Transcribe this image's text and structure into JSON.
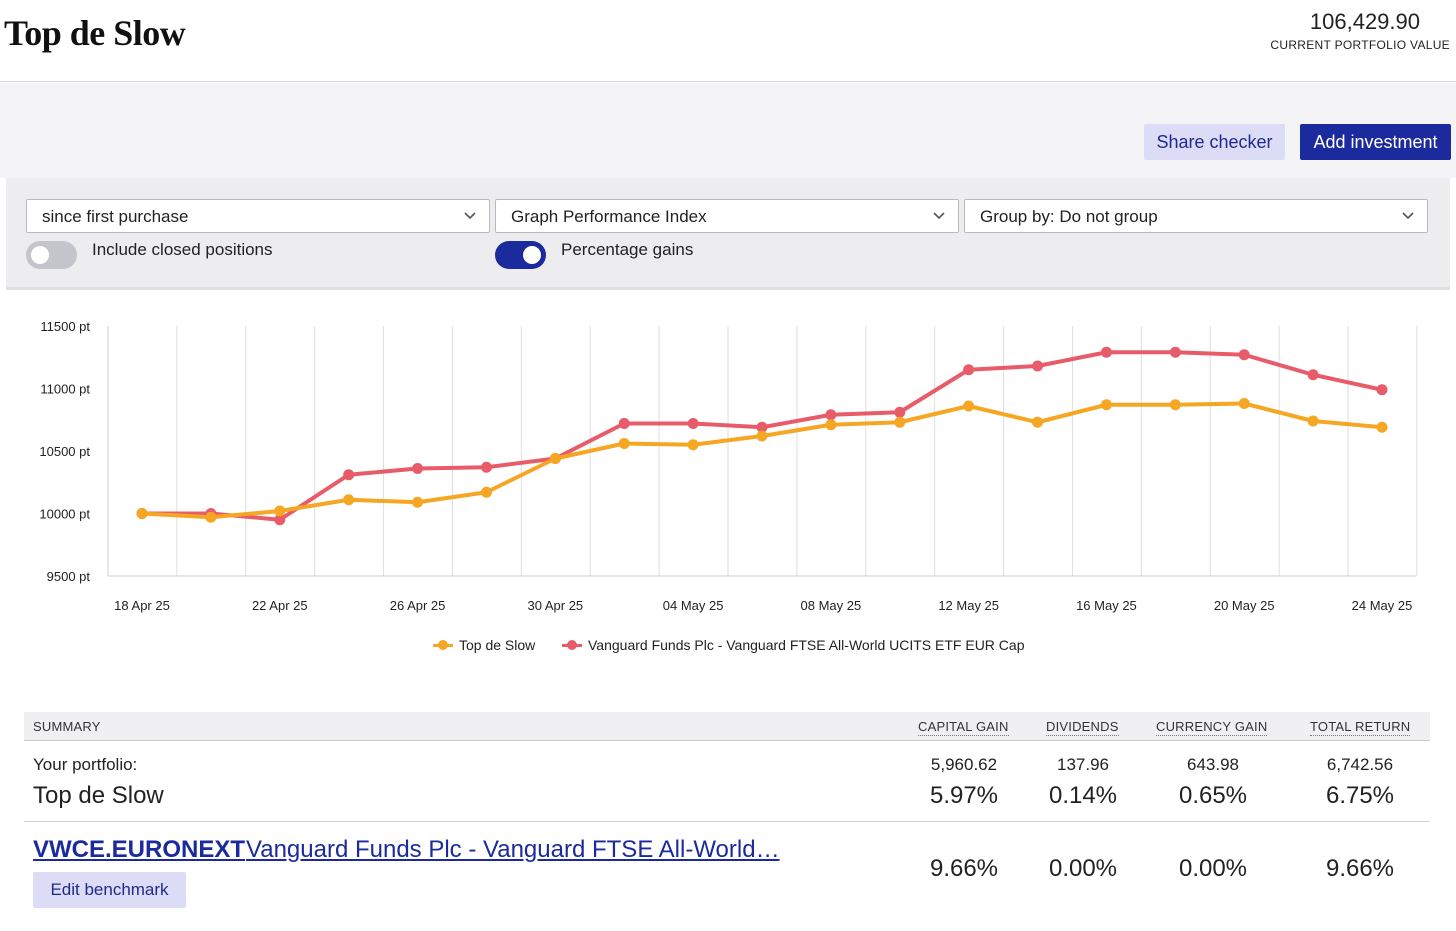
{
  "header": {
    "title": "Top de Slow",
    "portfolio_value": "106,429.90",
    "portfolio_label": "CURRENT PORTFOLIO VALUE"
  },
  "toolbar": {
    "share_checker": "Share checker",
    "add_investment": "Add investment"
  },
  "filters": {
    "period": "since first purchase",
    "graph_type": "Graph Performance Index",
    "group_by": "Group by: Do not group",
    "include_closed_label": "Include closed positions",
    "include_closed_on": false,
    "percentage_gains_label": "Percentage gains",
    "percentage_gains_on": true
  },
  "chart_data": {
    "type": "line",
    "y_unit": "pt",
    "ylim": [
      9500,
      11500
    ],
    "y_ticks": [
      9500,
      10000,
      10500,
      11000,
      11500
    ],
    "y_tick_labels": [
      "9500 pt",
      "10000 pt",
      "10500 pt",
      "11000 pt",
      "11500 pt"
    ],
    "x": [
      "18 Apr 25",
      "20 Apr 25",
      "22 Apr 25",
      "24 Apr 25",
      "26 Apr 25",
      "28 Apr 25",
      "30 Apr 25",
      "02 May 25",
      "04 May 25",
      "06 May 25",
      "08 May 25",
      "10 May 25",
      "12 May 25",
      "14 May 25",
      "16 May 25",
      "18 May 25",
      "20 May 25",
      "22 May 25",
      "24 May 25"
    ],
    "x_tick_labels": [
      "18 Apr 25",
      "22 Apr 25",
      "26 Apr 25",
      "30 Apr 25",
      "04 May 25",
      "08 May 25",
      "12 May 25",
      "16 May 25",
      "20 May 25",
      "24 May 25"
    ],
    "grid": true,
    "legend_position": "bottom",
    "series": [
      {
        "name": "Top de Slow",
        "color": "#f5a623",
        "values": [
          10000,
          9970,
          10020,
          10110,
          10090,
          10170,
          10440,
          10560,
          10550,
          10620,
          10710,
          10730,
          10860,
          10730,
          10870,
          10870,
          10880,
          10740,
          10690
        ]
      },
      {
        "name": "Vanguard Funds Plc - Vanguard FTSE All-World UCITS ETF EUR Cap",
        "color": "#e85c6a",
        "values": [
          10000,
          10000,
          9950,
          10310,
          10360,
          10370,
          10440,
          10720,
          10720,
          10690,
          10790,
          10810,
          11150,
          11180,
          11290,
          11290,
          11270,
          11110,
          10990
        ]
      }
    ]
  },
  "summary": {
    "headers": {
      "summary": "SUMMARY",
      "capital_gain": "CAPITAL GAIN",
      "dividends": "DIVIDENDS",
      "currency_gain": "CURRENCY GAIN",
      "total_return": "TOTAL RETURN"
    },
    "portfolio_row": {
      "label": "Your portfolio:",
      "name": "Top de Slow",
      "capital_gain": "5,960.62",
      "capital_gain_pct": "5.97%",
      "dividends": "137.96",
      "dividends_pct": "0.14%",
      "currency_gain": "643.98",
      "currency_gain_pct": "0.65%",
      "total_return": "6,742.56",
      "total_return_pct": "6.75%"
    },
    "benchmark_row": {
      "code": "VWCE.EURONEXT",
      "name": "Vanguard Funds Plc - Vanguard FTSE All-World…",
      "capital_gain_pct": "9.66%",
      "dividends_pct": "0.00%",
      "currency_gain_pct": "0.00%",
      "total_return_pct": "9.66%",
      "edit_label": "Edit benchmark"
    }
  }
}
